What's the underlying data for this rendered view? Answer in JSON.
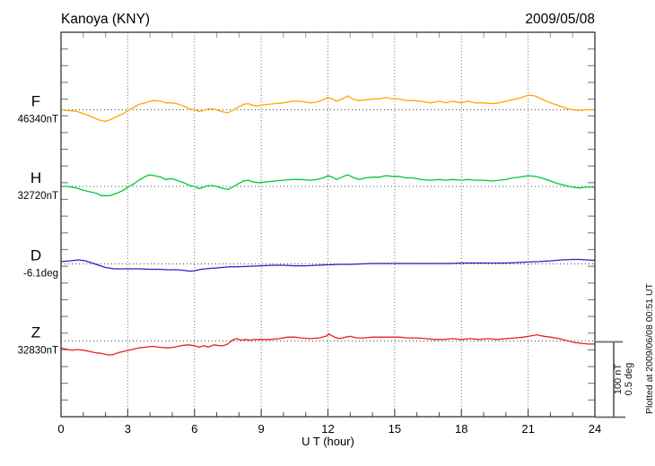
{
  "header": {
    "station": "Kanoya (KNY)",
    "date": "2009/05/08"
  },
  "chart_data": {
    "type": "line",
    "title": "Kanoya (KNY)",
    "date_label": "2009/05/08",
    "xlabel": "U T (hour)",
    "x_range": [
      0,
      24
    ],
    "x_major_ticks": [
      0,
      3,
      6,
      9,
      12,
      15,
      18,
      21,
      24
    ],
    "x_minor_tick_every_hours": 1,
    "grid": "dotted vertical lines every 3 hours; dotted horizontal baseline per component",
    "legend_position": "left of each trace baseline",
    "scale_bar": {
      "labels": [
        "100 nT",
        "0.5 deg"
      ],
      "nT_per_bar": 100,
      "deg_per_bar": 0.5
    },
    "footnote": "Plotted at 2009/06/08 00:51 UT",
    "series": [
      {
        "id": "F",
        "label": "F",
        "baseline_label": "46340nT",
        "baseline_value": 46340,
        "unit": "nT",
        "color": "#FFA500",
        "hours": [
          0,
          0.3,
          0.7,
          1,
          1.3,
          1.6,
          1.8,
          2,
          2.2,
          2.5,
          2.8,
          3,
          3.2,
          3.5,
          3.8,
          4,
          4.2,
          4.5,
          4.7,
          5,
          5.2,
          5.5,
          5.8,
          6,
          6.2,
          6.4,
          6.6,
          6.8,
          7,
          7.2,
          7.5,
          7.7,
          8,
          8.2,
          8.4,
          8.6,
          8.8,
          9,
          9.3,
          9.6,
          10,
          10.4,
          10.8,
          11.2,
          11.5,
          11.8,
          12,
          12.2,
          12.4,
          12.7,
          12.9,
          13.1,
          13.4,
          13.7,
          14,
          14.3,
          14.6,
          14.9,
          15.2,
          15.5,
          15.8,
          16.2,
          16.6,
          17,
          17.3,
          17.6,
          18,
          18.3,
          18.6,
          19,
          19.4,
          19.7,
          20,
          20.3,
          20.6,
          21,
          21.3,
          21.6,
          22,
          22.3,
          22.7,
          23,
          23.3,
          23.6,
          24
        ],
        "delta": [
          0,
          -1,
          -2,
          -5,
          -8,
          -12,
          -14,
          -15,
          -13,
          -9,
          -5,
          -1,
          2,
          7,
          9,
          11,
          12,
          11,
          9,
          9,
          8,
          5,
          1,
          0,
          -2,
          -1,
          1,
          1,
          0,
          -2,
          -4,
          -1,
          4,
          7,
          8,
          6,
          5,
          6,
          7,
          8,
          9,
          11,
          11,
          9,
          10,
          13,
          16,
          14,
          11,
          15,
          18,
          14,
          12,
          13,
          14,
          14,
          16,
          14,
          14,
          12,
          12,
          11,
          9,
          11,
          9,
          11,
          9,
          11,
          9,
          9,
          8,
          9,
          11,
          13,
          15,
          19,
          18,
          14,
          9,
          6,
          2,
          0,
          -1,
          0,
          0
        ]
      },
      {
        "id": "H",
        "label": "H",
        "baseline_label": "32720nT",
        "baseline_value": 32720,
        "unit": "nT",
        "color": "#00C832",
        "hours": [
          0,
          0.3,
          0.7,
          1,
          1.3,
          1.6,
          1.8,
          2,
          2.2,
          2.5,
          2.8,
          3,
          3.2,
          3.5,
          3.8,
          4,
          4.2,
          4.5,
          4.7,
          5,
          5.2,
          5.5,
          5.8,
          6,
          6.2,
          6.4,
          6.6,
          6.8,
          7,
          7.2,
          7.5,
          7.7,
          8,
          8.2,
          8.4,
          8.6,
          8.8,
          9,
          9.3,
          9.6,
          10,
          10.4,
          10.8,
          11.2,
          11.5,
          11.8,
          12,
          12.2,
          12.4,
          12.7,
          12.9,
          13.1,
          13.4,
          13.7,
          14,
          14.3,
          14.6,
          14.9,
          15.2,
          15.5,
          15.8,
          16.2,
          16.6,
          17,
          17.3,
          17.6,
          18,
          18.3,
          18.6,
          19,
          19.4,
          19.7,
          20,
          20.3,
          20.6,
          21,
          21.3,
          21.6,
          22,
          22.3,
          22.7,
          23,
          23.3,
          23.6,
          24
        ],
        "delta": [
          0,
          0,
          -2,
          -5,
          -7,
          -9,
          -12,
          -12,
          -12,
          -9,
          -5,
          -1,
          2,
          8,
          13,
          15,
          14,
          12,
          9,
          10,
          8,
          5,
          1,
          0,
          -3,
          -1,
          1,
          1,
          0,
          -2,
          -4,
          -1,
          4,
          7,
          8,
          6,
          5,
          5,
          6,
          7,
          8,
          9,
          9,
          8,
          9,
          11,
          14,
          12,
          9,
          13,
          15,
          12,
          9,
          11,
          12,
          12,
          14,
          13,
          13,
          11,
          11,
          9,
          8,
          9,
          8,
          9,
          8,
          9,
          8,
          8,
          7,
          8,
          9,
          11,
          12,
          14,
          13,
          11,
          7,
          4,
          1,
          -1,
          -2,
          -1,
          -1
        ]
      },
      {
        "id": "D",
        "label": "D",
        "baseline_label": "-6.1deg",
        "baseline_value": -6.1,
        "unit": "deg",
        "color": "#2222CC",
        "hours": [
          0,
          0.4,
          0.8,
          1.1,
          1.4,
          1.7,
          2,
          2.4,
          2.8,
          3.2,
          3.6,
          4,
          4.4,
          4.8,
          5.2,
          5.5,
          5.8,
          6,
          6.3,
          6.7,
          7,
          7.5,
          8,
          8.5,
          9,
          9.5,
          10,
          10.5,
          11,
          11.5,
          12,
          12.5,
          13,
          13.5,
          14,
          14.5,
          15,
          15.5,
          16,
          16.5,
          17,
          17.5,
          18,
          18.5,
          19,
          19.5,
          20,
          20.5,
          21,
          21.5,
          22,
          22.5,
          23,
          23.3,
          23.6,
          24
        ],
        "delta": [
          0.015,
          0.02,
          0.026,
          0.02,
          0.006,
          -0.009,
          -0.023,
          -0.032,
          -0.032,
          -0.032,
          -0.032,
          -0.035,
          -0.035,
          -0.038,
          -0.038,
          -0.041,
          -0.047,
          -0.044,
          -0.035,
          -0.029,
          -0.026,
          -0.02,
          -0.018,
          -0.015,
          -0.012,
          -0.009,
          -0.009,
          -0.012,
          -0.012,
          -0.009,
          -0.006,
          -0.003,
          -0.003,
          0,
          0.003,
          0.003,
          0.003,
          0.003,
          0.003,
          0.003,
          0.003,
          0.003,
          0.006,
          0.006,
          0.006,
          0.006,
          0.006,
          0.009,
          0.012,
          0.015,
          0.02,
          0.026,
          0.029,
          0.029,
          0.026,
          0.023
        ]
      },
      {
        "id": "Z",
        "label": "Z",
        "baseline_label": "32830nT",
        "baseline_value": 32830,
        "unit": "nT",
        "color": "#E62222",
        "hours": [
          0,
          0.3,
          0.5,
          0.7,
          1,
          1.2,
          1.5,
          1.8,
          2.1,
          2.3,
          2.6,
          2.9,
          3.2,
          3.5,
          3.8,
          4.1,
          4.4,
          4.8,
          5.1,
          5.4,
          5.7,
          6,
          6.2,
          6.45,
          6.6,
          6.9,
          7.1,
          7.3,
          7.5,
          7.7,
          7.9,
          8.1,
          8.3,
          8.5,
          8.7,
          9,
          9.4,
          9.8,
          10.2,
          10.5,
          10.8,
          11.2,
          11.6,
          11.9,
          12.05,
          12.3,
          12.5,
          12.8,
          13,
          13.3,
          13.6,
          14,
          14.4,
          14.8,
          15.2,
          15.6,
          16,
          16.4,
          16.8,
          17.2,
          17.6,
          18,
          18.4,
          18.8,
          19.2,
          19.6,
          20,
          20.4,
          20.8,
          21.2,
          21.4,
          21.7,
          22,
          22.4,
          22.8,
          23.1,
          23.4,
          23.7,
          24
        ],
        "delta": [
          -9,
          -11,
          -12,
          -11,
          -12,
          -13,
          -15,
          -16,
          -18,
          -18,
          -15,
          -13,
          -11,
          -9,
          -8,
          -7,
          -8,
          -9,
          -8,
          -6,
          -5,
          -6,
          -8,
          -6,
          -8,
          -5,
          -6,
          -6,
          -4,
          1,
          3,
          1,
          2,
          1,
          2,
          2,
          2,
          3,
          5,
          5,
          4,
          3,
          4,
          6,
          9,
          5,
          3,
          5,
          6,
          4,
          4,
          5,
          5,
          5,
          5,
          4,
          4,
          3,
          2,
          2,
          3,
          2,
          3,
          2,
          3,
          2,
          3,
          4,
          5,
          7,
          8,
          6,
          5,
          3,
          0,
          -2,
          -3,
          -4,
          -4
        ]
      }
    ]
  }
}
